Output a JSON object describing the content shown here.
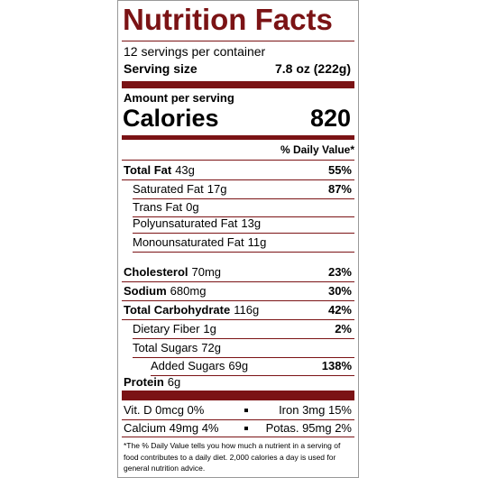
{
  "title": "Nutrition Facts",
  "servings": "12 servings per container",
  "serving_size": {
    "label": "Serving size",
    "value": "7.8 oz (222g)"
  },
  "amount_per_serving": "Amount per serving",
  "calories": {
    "label": "Calories",
    "value": 820
  },
  "daily_value_header": "% Daily Value*",
  "nutrients": [
    {
      "name": "Total Fat",
      "amount": "43g",
      "dv": "55%"
    },
    {
      "name": "Saturated Fat",
      "amount": "17g",
      "dv": "87%"
    },
    {
      "name": "Trans Fat",
      "amount": "0g"
    },
    {
      "name": "Polyunsaturated Fat",
      "amount": "13g"
    },
    {
      "name": "Monounsaturated Fat",
      "amount": "11g"
    },
    {
      "name": "Cholesterol",
      "amount": "70mg",
      "dv": "23%"
    },
    {
      "name": "Sodium",
      "amount": "680mg",
      "dv": "30%"
    },
    {
      "name": "Total Carbohydrate",
      "amount": "116g",
      "dv": "42%"
    },
    {
      "name": "Dietary Fiber",
      "amount": "1g",
      "dv": "2%"
    },
    {
      "name": "Total Sugars",
      "amount": "72g"
    },
    {
      "name": "Added Sugars",
      "amount": "69g",
      "dv": "138%"
    },
    {
      "name": "Protein",
      "amount": "6g"
    }
  ],
  "vitamins": [
    {
      "left": "Vit. D 0mcg 0%",
      "right": "Iron 3mg 15%"
    },
    {
      "left": "Calcium 49mg 4%",
      "right": "Potas. 95mg 2%"
    }
  ],
  "footnote": "*The % Daily Value tells you how much a nutrient in a serving of food contributes to a daily diet. 2,000 calories a day is used for general nutrition advice."
}
